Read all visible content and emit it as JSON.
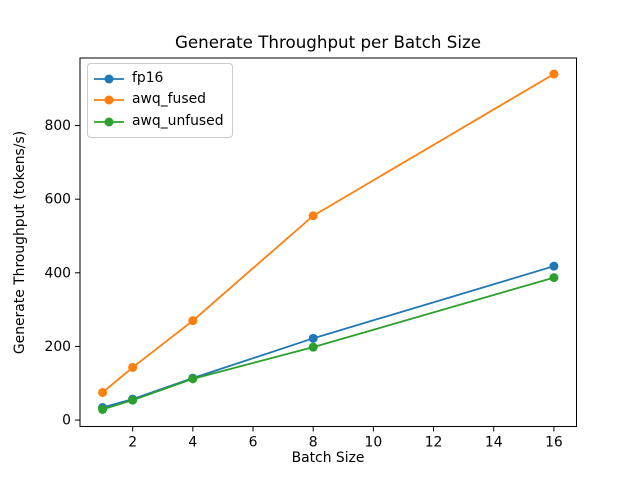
{
  "figure": {
    "title": "Generate Throughput per Batch Size",
    "xlabel": "Batch Size",
    "ylabel": "Generate Throughput (tokens/s)",
    "background": "#ffffff",
    "spine_color": "#000000"
  },
  "chart_data": {
    "type": "line",
    "title": "Generate Throughput per Batch Size",
    "xlabel": "Batch Size",
    "ylabel": "Generate Throughput (tokens/s)",
    "x": [
      1,
      2,
      4,
      8,
      16
    ],
    "series": [
      {
        "name": "fp16",
        "color": "#1f77b4",
        "values": [
          34,
          57,
          114,
          222,
          418
        ]
      },
      {
        "name": "awq_fused",
        "color": "#ff7f0e",
        "values": [
          75,
          143,
          270,
          555,
          940
        ]
      },
      {
        "name": "awq_unfused",
        "color": "#2ca02c",
        "values": [
          29,
          54,
          112,
          198,
          387
        ]
      }
    ],
    "xticks": [
      2,
      4,
      6,
      8,
      10,
      12,
      14,
      16
    ],
    "yticks": [
      0,
      200,
      400,
      600,
      800
    ],
    "xlim": [
      0.25,
      16.75
    ],
    "ylim": [
      -17.5,
      983.5
    ],
    "grid": false,
    "marker": "circle",
    "legend_position": "upper-left",
    "legend_labels": [
      "fp16",
      "awq_fused",
      "awq_unfused"
    ]
  }
}
